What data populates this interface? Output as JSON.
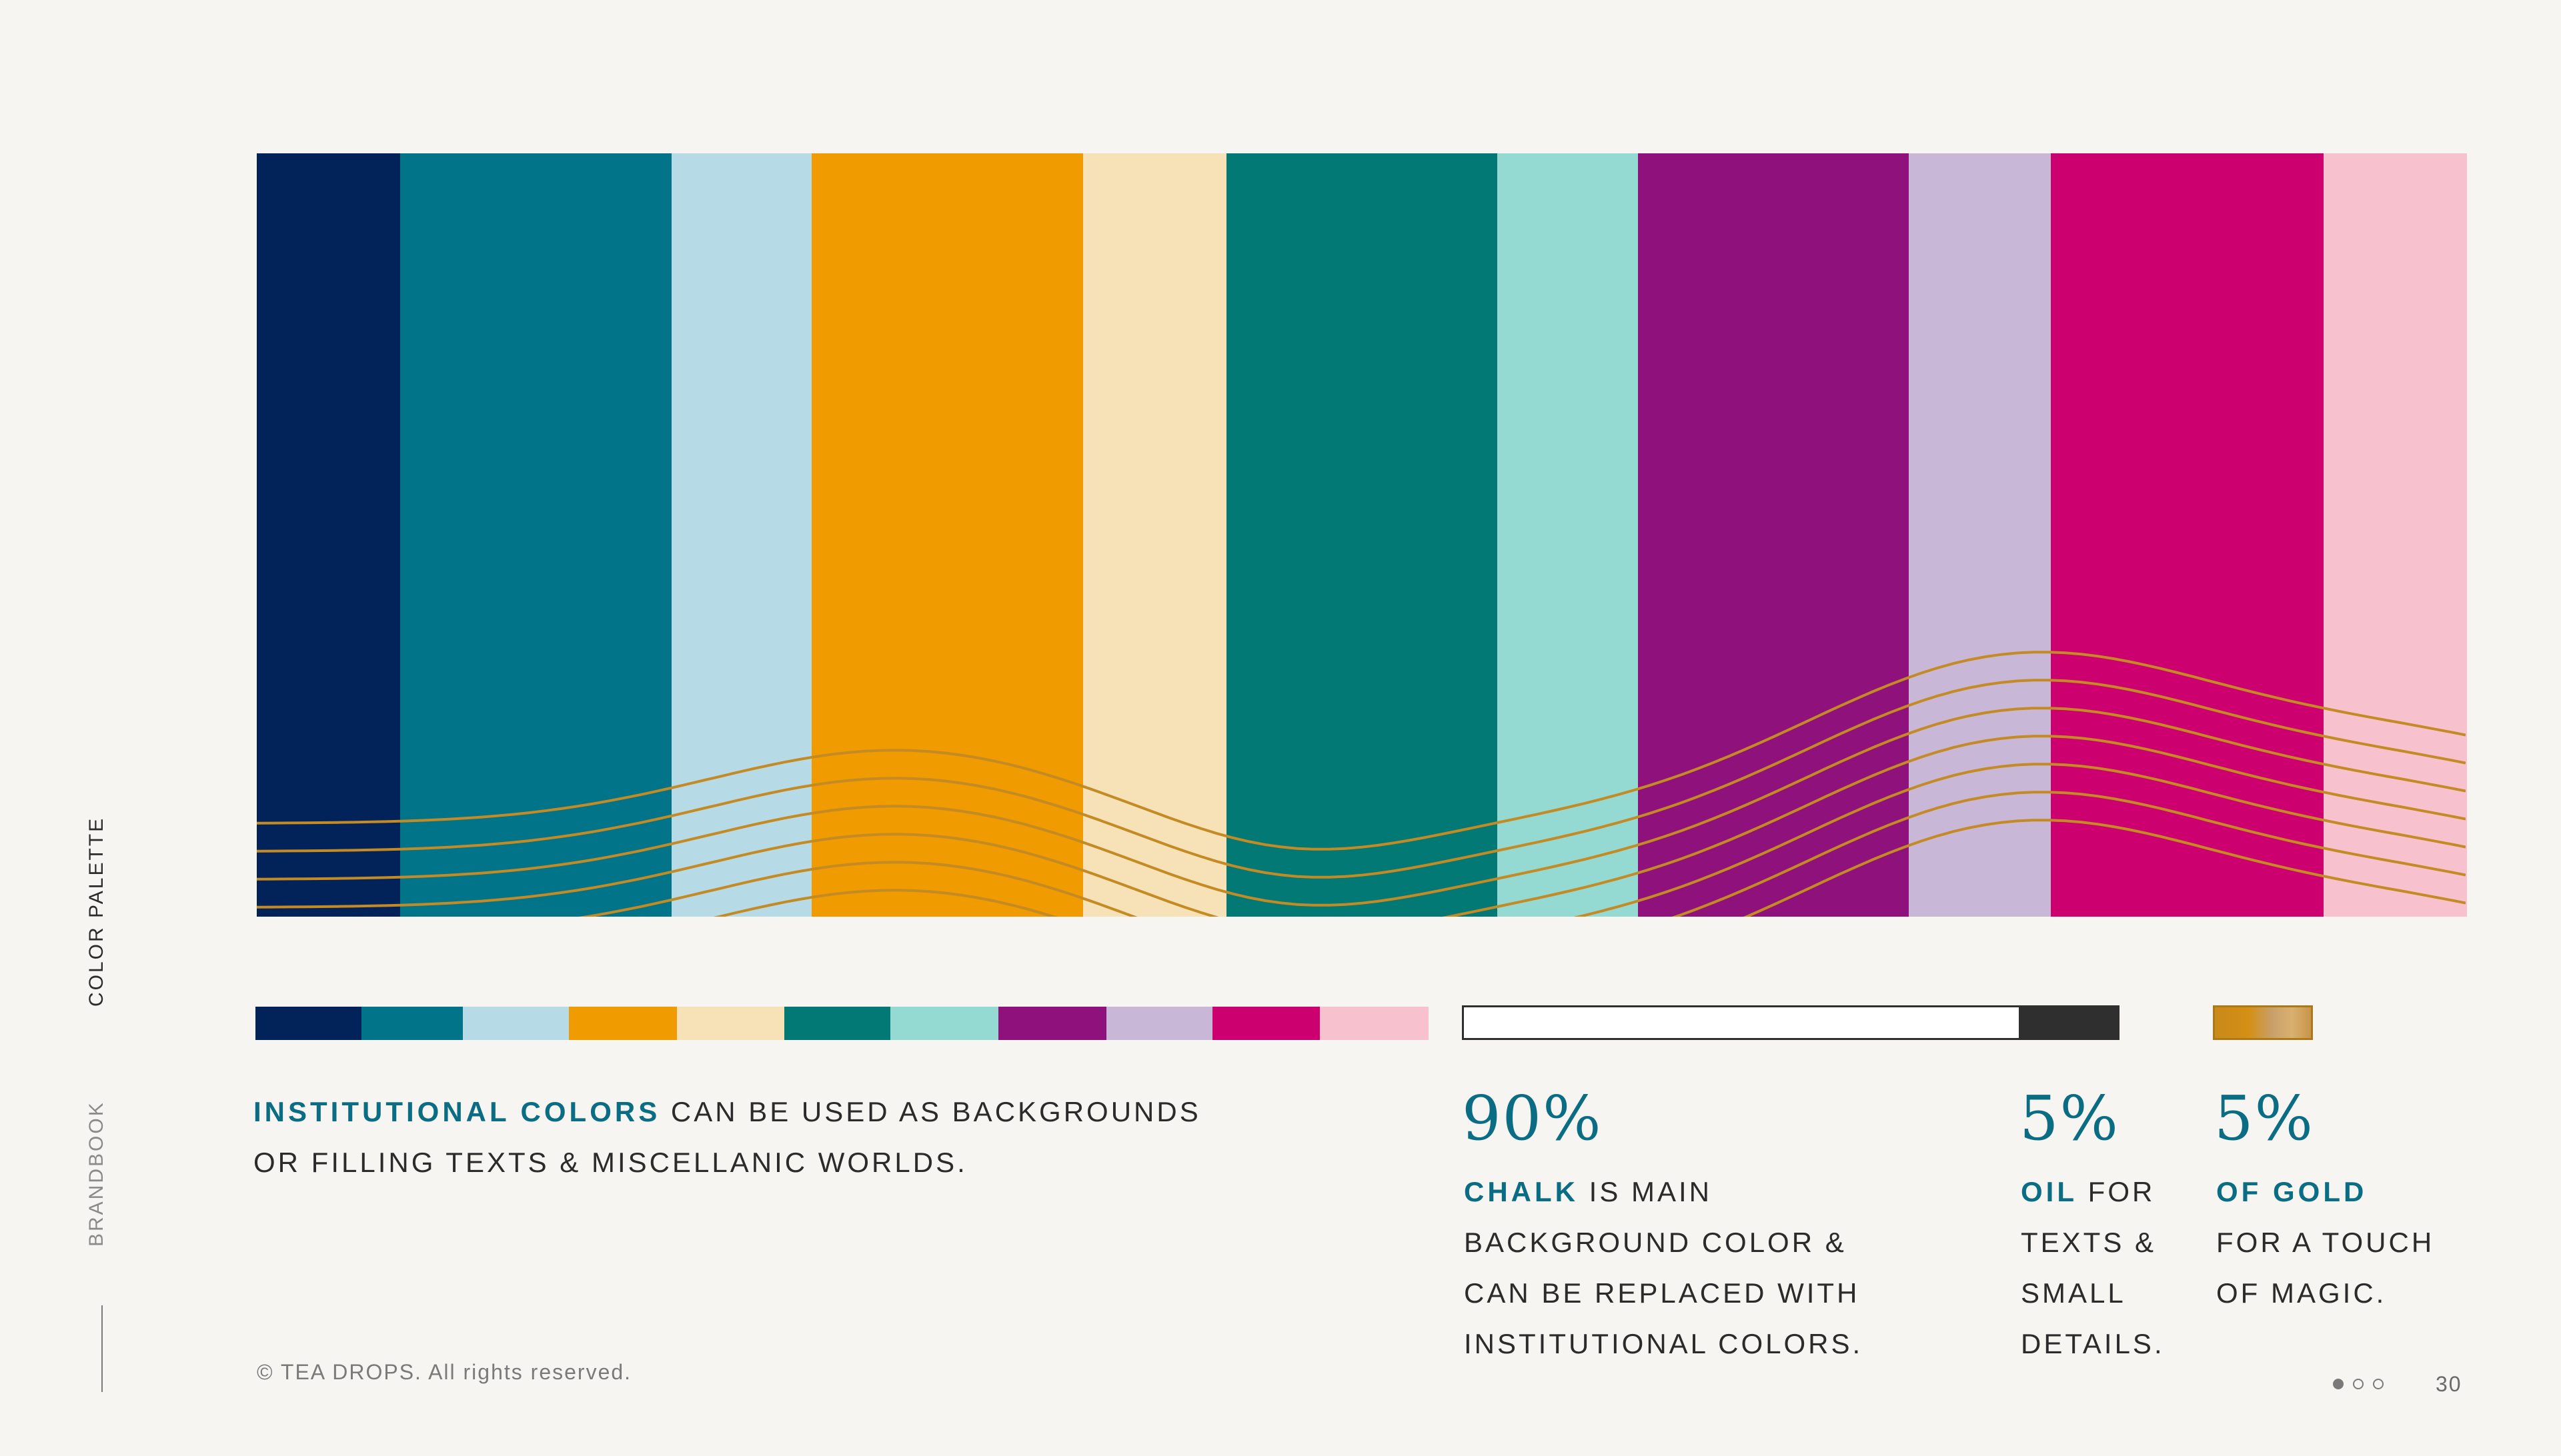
{
  "palette": {
    "stripes": [
      {
        "color": "#02235a",
        "width": 88
      },
      {
        "color": "#017489",
        "width": 166
      },
      {
        "color": "#b7dbe6",
        "width": 86
      },
      {
        "color": "#f09b00",
        "width": 166
      },
      {
        "color": "#f7e2b7",
        "width": 88
      },
      {
        "color": "#027974",
        "width": 166
      },
      {
        "color": "#94d9d2",
        "width": 86
      },
      {
        "color": "#8f117b",
        "width": 166
      },
      {
        "color": "#c8b7d6",
        "width": 87
      },
      {
        "color": "#cc006f",
        "width": 167
      },
      {
        "color": "#f7c2cd",
        "width": 87
      }
    ],
    "wave_color": "#c48a24"
  },
  "small_palette": {
    "swatches": [
      {
        "color": "#02235a",
        "width": 65
      },
      {
        "color": "#017489",
        "width": 62
      },
      {
        "color": "#b7dbe6",
        "width": 65
      },
      {
        "color": "#f09b00",
        "width": 66
      },
      {
        "color": "#f7e2b7",
        "width": 66
      },
      {
        "color": "#027974",
        "width": 65
      },
      {
        "color": "#94d9d2",
        "width": 66
      },
      {
        "color": "#8f117b",
        "width": 66
      },
      {
        "color": "#c8b7d6",
        "width": 65
      },
      {
        "color": "#cc006f",
        "width": 66
      },
      {
        "color": "#f7c2cd",
        "width": 66
      }
    ]
  },
  "chalk_color": "#ffffff",
  "oil_color": "#2f2f2f",
  "gold_color": "#c9954a",
  "accent_color": "#0b6d84",
  "institutional": {
    "highlight": "INSTITUTIONAL COLORS",
    "line1_rest": " CAN BE USED AS BACKGROUNDS",
    "line2": "OR FILLING TEXTS & MISCELLANIC WORLDS."
  },
  "chalk": {
    "percent": "90%",
    "highlight": "CHALK",
    "line1_rest": " IS MAIN",
    "line2": "BACKGROUND COLOR &",
    "line3": "CAN BE REPLACED WITH",
    "line4": "INSTITUTIONAL COLORS."
  },
  "oil": {
    "percent": "5%",
    "highlight": "OIL",
    "line1_rest": " FOR",
    "line2": "TEXTS &",
    "line3": "SMALL",
    "line4": "DETAILS."
  },
  "gold": {
    "percent": "5%",
    "highlight": "OF GOLD",
    "line2": "FOR A TOUCH",
    "line3": "OF MAGIC."
  },
  "side": {
    "section": "COLOR PALETTE",
    "brand": "BRANDBOOK"
  },
  "footer": {
    "copyright": "© TEA DROPS. All rights reserved.",
    "page_number": "30",
    "pager_active": 0,
    "pager_count": 3
  }
}
